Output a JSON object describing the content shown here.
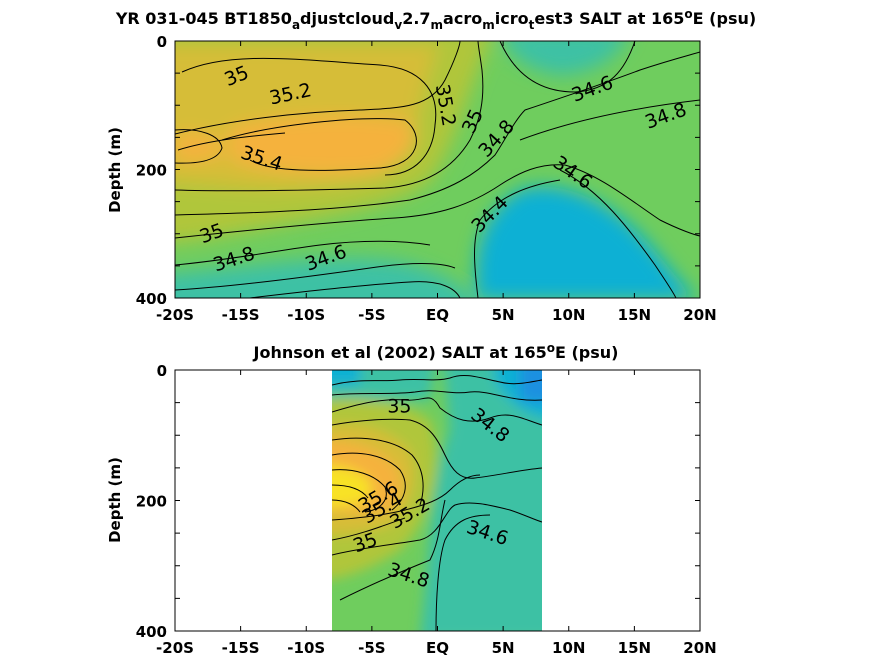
{
  "colors": {
    "s34_2": "#1f90e0",
    "s34_4": "#10b0d4",
    "s34_6": "#3cc1a4",
    "s34_8": "#6fcd5e",
    "s35_0": "#b0c63a",
    "s35_2": "#d6bd38",
    "s35_4": "#f5b23c",
    "s35_6": "#f8e226"
  },
  "chart_data": [
    {
      "type": "contour",
      "title_parts": {
        "p1": "YR 031-045 BT1850",
        "s1": "a",
        "p2": "djustcloud",
        "s2": "v",
        "p3": "2.7",
        "s3": "m",
        "p4": "acro",
        "s4": "m",
        "p5": "icro",
        "s5": "t",
        "p6": "est3 SALT at 165",
        "sup": "o",
        "p7": "E (psu)"
      },
      "ylabel": "Depth (m)",
      "x_ticks": [
        "-20S",
        "-15S",
        "-10S",
        "-5S",
        "EQ",
        "5N",
        "10N",
        "15N",
        "20N"
      ],
      "y_ticks": [
        "0",
        "200",
        "400"
      ],
      "xlim": [
        -20,
        20
      ],
      "ylim": [
        0,
        400
      ],
      "contour_labels": [
        {
          "text": "35",
          "lat": -15.3,
          "depth": 55,
          "rot": -22
        },
        {
          "text": "35.2",
          "lat": -11.2,
          "depth": 83,
          "rot": -12
        },
        {
          "text": "35.2",
          "lat": 0.6,
          "depth": 100,
          "rot": 80
        },
        {
          "text": "35",
          "lat": 2.7,
          "depth": 125,
          "rot": -65
        },
        {
          "text": "34.8",
          "lat": 4.5,
          "depth": 152,
          "rot": -48
        },
        {
          "text": "34.6",
          "lat": 11.8,
          "depth": 75,
          "rot": -20
        },
        {
          "text": "34.8",
          "lat": 17.4,
          "depth": 117,
          "rot": -20
        },
        {
          "text": "35.4",
          "lat": -13.4,
          "depth": 183,
          "rot": 18
        },
        {
          "text": "34.6",
          "lat": 10.3,
          "depth": 205,
          "rot": 35
        },
        {
          "text": "34.4",
          "lat": 4.0,
          "depth": 270,
          "rot": -45
        },
        {
          "text": "35",
          "lat": -17.2,
          "depth": 300,
          "rot": -20
        },
        {
          "text": "34.8",
          "lat": -15.5,
          "depth": 340,
          "rot": -18
        },
        {
          "text": "34.6",
          "lat": -8.5,
          "depth": 338,
          "rot": -20
        }
      ]
    },
    {
      "type": "contour",
      "title_parts": {
        "p1": "Johnson et al (2002) SALT at 165",
        "sup": "o",
        "p2": "E (psu)"
      },
      "ylabel": "Depth (m)",
      "x_ticks": [
        "-20S",
        "-15S",
        "-10S",
        "-5S",
        "EQ",
        "5N",
        "10N",
        "15N",
        "20N"
      ],
      "y_ticks": [
        "0",
        "200",
        "400"
      ],
      "xlim": [
        -20,
        20
      ],
      "ylim": [
        0,
        400
      ],
      "data_lat_range": [
        -8,
        8
      ],
      "contour_labels": [
        {
          "text": "35",
          "lat": -2.9,
          "depth": 56,
          "rot": 0
        },
        {
          "text": "34.8",
          "lat": 4.0,
          "depth": 85,
          "rot": 38
        },
        {
          "text": "35.6",
          "lat": -4.5,
          "depth": 195,
          "rot": -30
        },
        {
          "text": "35.4",
          "lat": -4.2,
          "depth": 212,
          "rot": -30
        },
        {
          "text": "35.2",
          "lat": -2.1,
          "depth": 220,
          "rot": -30
        },
        {
          "text": "34.6",
          "lat": 3.8,
          "depth": 250,
          "rot": 18
        },
        {
          "text": "35",
          "lat": -5.5,
          "depth": 265,
          "rot": -20
        },
        {
          "text": "34.8",
          "lat": -2.2,
          "depth": 315,
          "rot": 18
        }
      ]
    }
  ]
}
